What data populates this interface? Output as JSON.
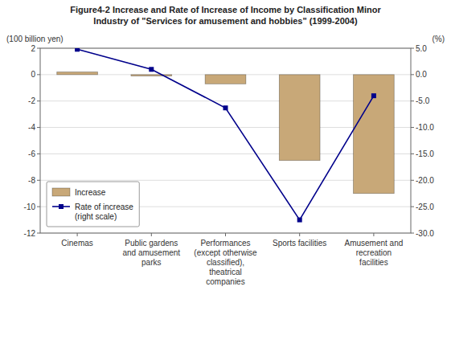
{
  "chart_data": {
    "type": "bar",
    "title": "Figure4-2   Increase and Rate of Increase of Income by Classification Minor\nIndustry of \"Services for amusement and hobbies\" (1999-2004)",
    "ylabel": "(100 billion yen)",
    "y2label": "(%)",
    "categories": [
      "Cinemas",
      "Public gardens\nand amusement\nparks",
      "Performances\n(except otherwise\nclassified),\ntheatrical\ncompanies",
      "Sports facilities",
      "Amusement and\nrecreation\nfacilities"
    ],
    "series": [
      {
        "name": "Increase",
        "type": "bar",
        "color": "#C8A878",
        "values": [
          0.2,
          -0.1,
          -0.7,
          -6.5,
          -9.0
        ]
      },
      {
        "name": "Rate of increase\n(right scale)",
        "type": "line",
        "axis": "y2",
        "color": "#00008B",
        "marker": "square",
        "values": [
          4.8,
          1.0,
          -6.3,
          -27.5,
          -4.0
        ]
      }
    ],
    "ylim": [
      -12,
      2
    ],
    "yticks": [
      -12,
      -10,
      -8,
      -6,
      -4,
      -2,
      0,
      2
    ],
    "y2lim": [
      -30.0,
      5.0
    ],
    "y2ticks": [
      {
        "value": -30.0,
        "label": "-30.0"
      },
      {
        "value": -25.0,
        "label": "-25.0"
      },
      {
        "value": -20.0,
        "label": "-20.0"
      },
      {
        "value": -15.0,
        "label": "-15.0"
      },
      {
        "value": -10.0,
        "label": "-10.0"
      },
      {
        "value": -5.0,
        "label": "-5.0"
      },
      {
        "value": 0.0,
        "label": "0.0"
      },
      {
        "value": 5.0,
        "label": "5.0"
      }
    ],
    "grid": true,
    "legend": "lower left"
  }
}
